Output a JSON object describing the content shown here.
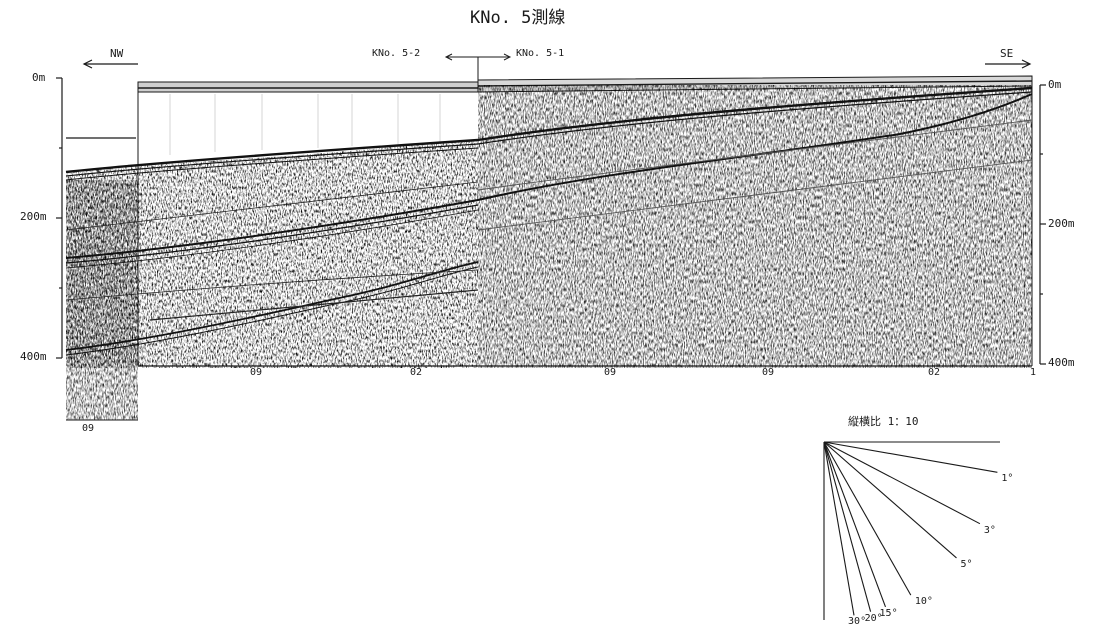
{
  "title": "KNo. 5測線",
  "direction": {
    "left": "NW",
    "right": "SE"
  },
  "line_junction": {
    "left": "KNo. 5-2",
    "right": "KNo. 5-1"
  },
  "depth_axis_left": [
    "0m",
    "200m",
    "400m"
  ],
  "depth_axis_right": [
    "0m",
    "200m",
    "400m"
  ],
  "shotpoint_marks_section": [
    "09",
    "02",
    "09",
    "09",
    "02",
    "1"
  ],
  "shotpoint_mark_inset": "09",
  "aspect_ratio_label": "縦横比 1：10",
  "angle_labels": [
    "1°",
    "3°",
    "5°",
    "10°",
    "15°",
    "20°",
    "30°"
  ],
  "angles_deg": [
    1,
    3,
    5,
    10,
    15,
    20,
    30
  ],
  "vertical_exaggeration": 10,
  "colors": {
    "ink": "#1a1a1a",
    "paper": "#ffffff"
  }
}
